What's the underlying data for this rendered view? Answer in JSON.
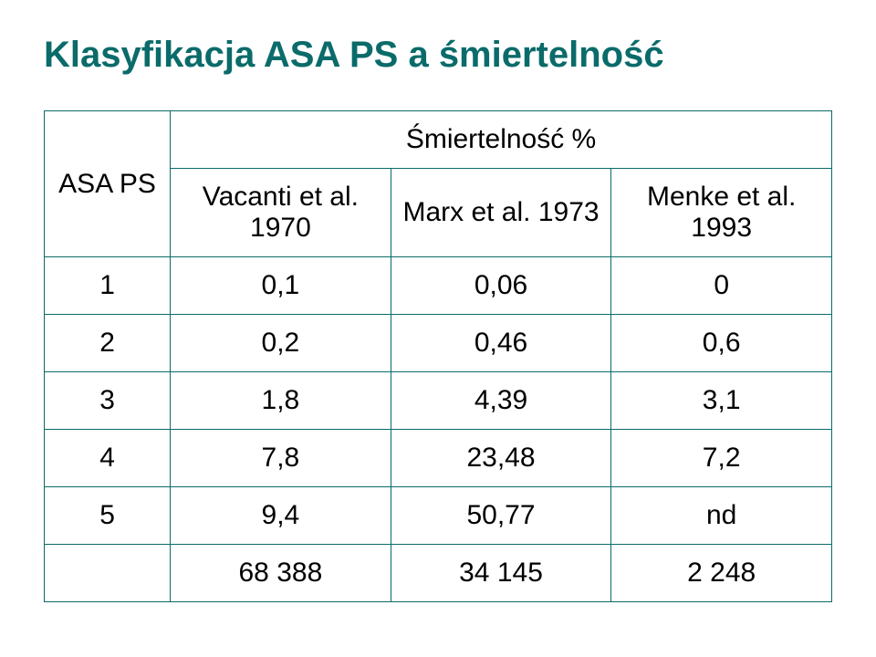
{
  "title": "Klasyfikacja ASA PS a śmiertelność",
  "colors": {
    "title_color": "#0a6b6a",
    "table_border": "#0a6b6a",
    "text_color": "#000000",
    "background": "#ffffff"
  },
  "table": {
    "type": "table",
    "header": {
      "row_label": "ASA PS",
      "spanning_label": "Śmiertelność %",
      "columns": [
        "Vacanti et al. 1970",
        "Marx et al. 1973",
        "Menke et al. 1993"
      ]
    },
    "rows": [
      {
        "asa": "1",
        "vacanti": "0,1",
        "marx": "0,06",
        "menke": "0"
      },
      {
        "asa": "2",
        "vacanti": "0,2",
        "marx": "0,46",
        "menke": "0,6"
      },
      {
        "asa": "3",
        "vacanti": "1,8",
        "marx": "4,39",
        "menke": "3,1"
      },
      {
        "asa": "4",
        "vacanti": "7,8",
        "marx": "23,48",
        "menke": "7,2"
      },
      {
        "asa": "5",
        "vacanti": "9,4",
        "marx": "50,77",
        "menke": "nd"
      },
      {
        "asa": "",
        "vacanti": "68 388",
        "marx": "34 145",
        "menke": "2 248"
      }
    ],
    "font_size_pt": 30,
    "cell_align": "center"
  }
}
